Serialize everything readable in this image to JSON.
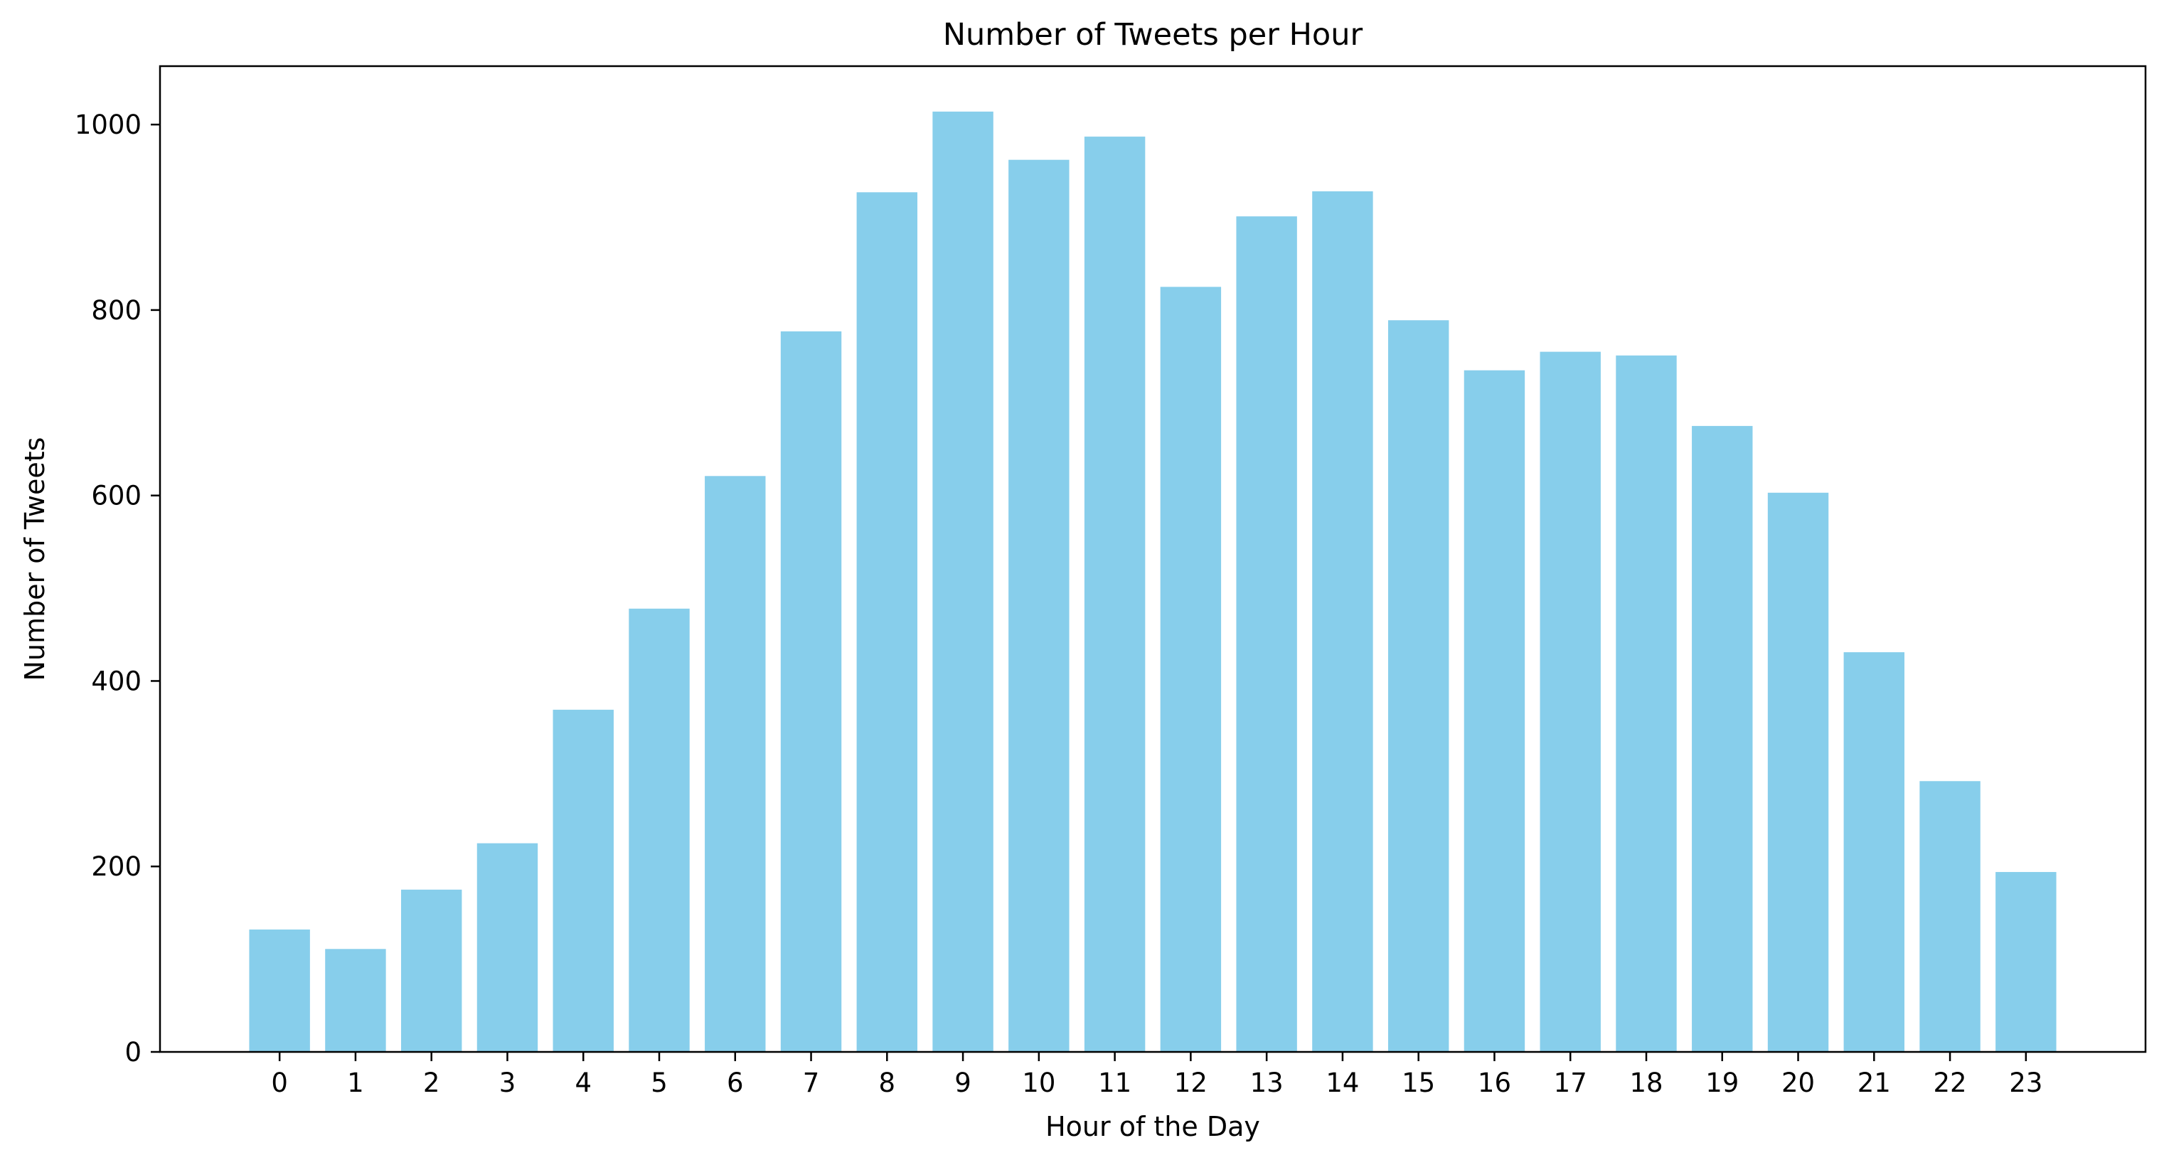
{
  "chart_data": {
    "type": "bar",
    "title": "Number of Tweets per Hour",
    "xlabel": "Hour of the Day",
    "ylabel": "Number of Tweets",
    "categories": [
      "0",
      "1",
      "2",
      "3",
      "4",
      "5",
      "6",
      "7",
      "8",
      "9",
      "10",
      "11",
      "12",
      "13",
      "14",
      "15",
      "16",
      "17",
      "18",
      "19",
      "20",
      "21",
      "22",
      "23"
    ],
    "values": [
      132,
      111,
      175,
      225,
      369,
      478,
      621,
      777,
      927,
      1014,
      962,
      987,
      825,
      901,
      928,
      789,
      735,
      755,
      751,
      675,
      603,
      431,
      292,
      194
    ],
    "ylim": [
      0,
      1063
    ],
    "yticks": [
      0,
      200,
      400,
      600,
      800,
      1000
    ],
    "bar_color": "#87CEEB",
    "grid": false,
    "legend": "none"
  }
}
